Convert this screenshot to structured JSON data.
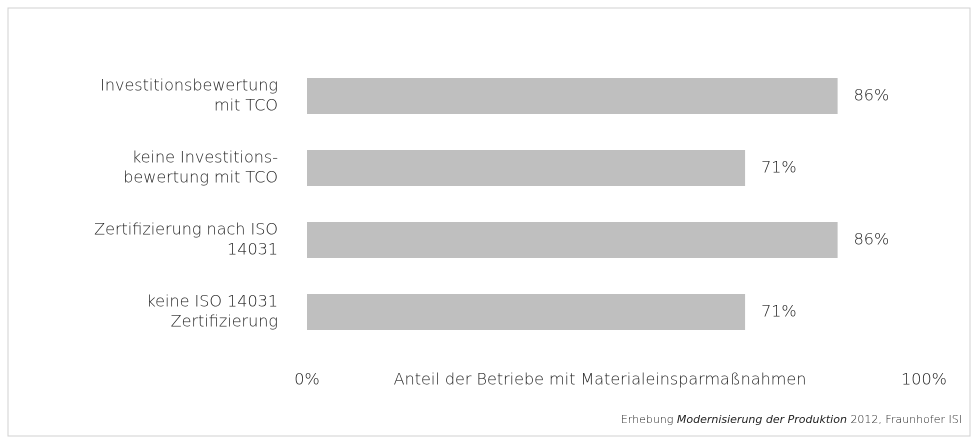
{
  "chart_data": {
    "type": "bar",
    "orientation": "horizontal",
    "categories": [
      [
        "Investitionsbewertung",
        "mit TCO"
      ],
      [
        "keine Investitions-",
        "bewertung mit TCO"
      ],
      [
        "Zertifizierung nach ISO",
        "14031"
      ],
      [
        "keine ISO 14031",
        "Zertifizierung"
      ]
    ],
    "values": [
      86,
      71,
      86,
      71
    ],
    "value_labels": [
      "86%",
      "71%",
      "86%",
      "71%"
    ],
    "color": "#bfbfbf",
    "xlim": [
      0,
      100
    ],
    "xticks": [
      {
        "value": 0,
        "label": "0%"
      },
      {
        "value": 100,
        "label": "100%"
      }
    ],
    "x_label": "Anteil der Betriebe mit Materialeinsparmaßnahmen",
    "source": {
      "prefix": "Erhebung",
      "italic": "Modernisierung der Produktion",
      "suffix": "2012, Fraunhofer ISI"
    }
  }
}
